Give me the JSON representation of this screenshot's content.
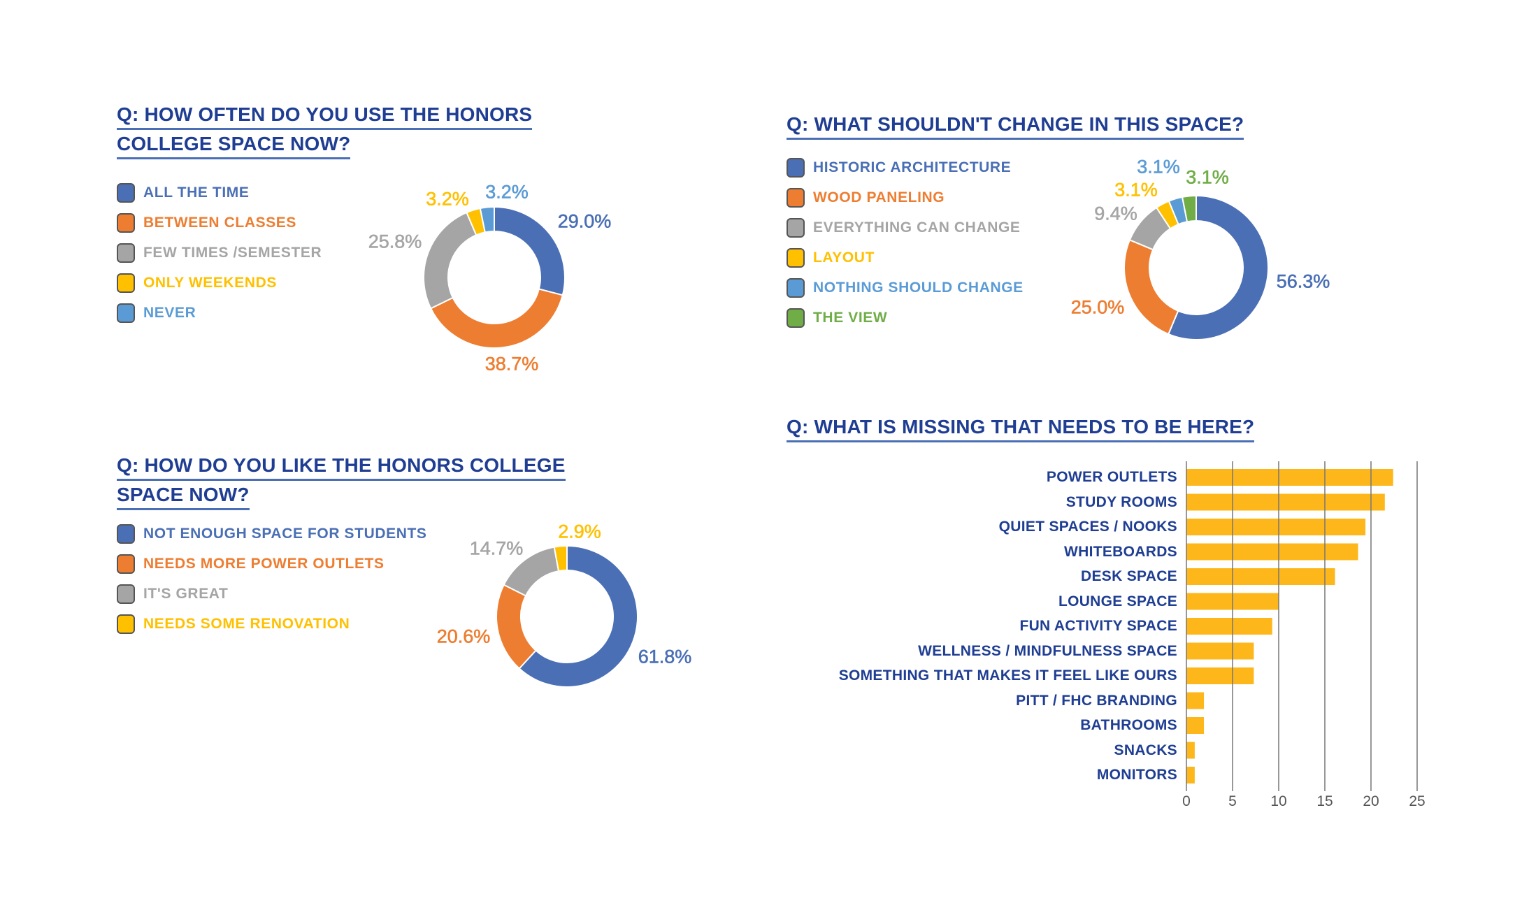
{
  "colors": {
    "title": "#1f3e93",
    "blue": "#4a6fb5",
    "orange": "#ed7d31",
    "gray": "#a5a5a5",
    "yellow": "#ffc000",
    "lightblue": "#5b9bd5",
    "green": "#70ad47",
    "bar": "#fdb71a",
    "grid": "#777777"
  },
  "chart_data": [
    {
      "type": "pie",
      "variant": "donut",
      "title_lines": [
        "Q: HOW OFTEN DO YOU USE THE HONORS ",
        "COLLEGE SPACE NOW?"
      ],
      "categories": [
        "ALL THE TIME",
        "BETWEEN CLASSES",
        "FEW TIMES /SEMESTER",
        "ONLY WEEKENDS",
        "NEVER"
      ],
      "values": [
        29.0,
        38.7,
        25.8,
        3.2,
        3.2
      ],
      "data_labels": [
        "29.0%",
        "38.7%",
        "25.8%",
        "3.2%",
        "3.2%"
      ],
      "colors": [
        "#4a6fb5",
        "#ed7d31",
        "#a5a5a5",
        "#ffc000",
        "#5b9bd5"
      ],
      "legend": "left"
    },
    {
      "type": "pie",
      "variant": "donut",
      "title_lines": [
        "Q: WHAT SHOULDN'T CHANGE IN THIS SPACE?"
      ],
      "categories": [
        "HISTORIC ARCHITECTURE",
        "WOOD PANELING",
        "EVERYTHING CAN CHANGE",
        "LAYOUT",
        "NOTHING SHOULD CHANGE",
        "THE VIEW"
      ],
      "values": [
        56.3,
        25.0,
        9.4,
        3.1,
        3.1,
        3.1
      ],
      "data_labels": [
        "56.3%",
        "25.0%",
        "9.4%",
        "3.1%",
        "3.1%",
        "3.1%"
      ],
      "colors": [
        "#4a6fb5",
        "#ed7d31",
        "#a5a5a5",
        "#ffc000",
        "#5b9bd5",
        "#70ad47"
      ],
      "legend": "left"
    },
    {
      "type": "pie",
      "variant": "donut",
      "title_lines": [
        "Q: HOW DO YOU LIKE THE HONORS COLLEGE ",
        "SPACE NOW?"
      ],
      "categories": [
        "NOT ENOUGH SPACE FOR STUDENTS",
        "NEEDS MORE POWER OUTLETS",
        "IT'S GREAT",
        "NEEDS SOME RENOVATION"
      ],
      "values": [
        61.8,
        20.6,
        14.7,
        2.9
      ],
      "data_labels": [
        "61.8%",
        "20.6%",
        "14.7%",
        "2.9%"
      ],
      "colors": [
        "#4a6fb5",
        "#ed7d31",
        "#a5a5a5",
        "#ffc000"
      ],
      "legend": "left"
    },
    {
      "type": "bar",
      "orientation": "horizontal",
      "title_lines": [
        "Q: WHAT IS MISSING THAT NEEDS TO BE HERE?"
      ],
      "categories": [
        "POWER OUTLETS",
        "STUDY ROOMS",
        "QUIET SPACES / NOOKS",
        "WHITEBOARDS",
        "DESK SPACE",
        "LOUNGE SPACE",
        "FUN ACTIVITY SPACE",
        "WELLNESS / MINDFULNESS SPACE",
        "SOMETHING THAT MAKES IT FEEL LIKE OURS",
        "PITT / FHC BRANDING",
        "BATHROOMS",
        "SNACKS",
        "MONITORS"
      ],
      "values": [
        22.4,
        21.5,
        19.4,
        18.6,
        16.1,
        10,
        9.3,
        7.3,
        7.3,
        1.9,
        1.9,
        0.9,
        0.9
      ],
      "xlim": [
        0,
        25
      ],
      "xticks": [
        "0",
        "5",
        "10",
        "15",
        "20",
        "25"
      ],
      "grid": true,
      "color": "#fdb71a"
    }
  ]
}
